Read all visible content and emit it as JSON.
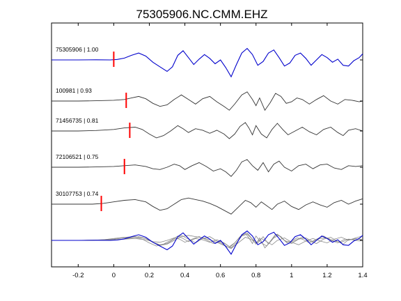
{
  "chart_data": {
    "type": "line",
    "title": "75305906.NC.CMM.EHZ",
    "xlabel": "",
    "ylabel": "",
    "xlim": [
      -0.35,
      1.4
    ],
    "x_ticks": [
      -0.2,
      0,
      0.2,
      0.4,
      0.6,
      0.8,
      1,
      1.2,
      1.4
    ],
    "x_tick_labels": [
      "-0.2",
      "0",
      "0.2",
      "0.4",
      "0.6",
      "0.8",
      "1",
      "1.2",
      "1.4"
    ],
    "grid": false,
    "series": [
      {
        "name": "75305906 | 1.00",
        "color": "#0000cc",
        "pick_time": 0.0,
        "pick_color": "#ff0000",
        "points": [
          [
            -0.35,
            0.0
          ],
          [
            -0.2,
            0.0
          ],
          [
            -0.1,
            0.01
          ],
          [
            -0.02,
            0.0
          ],
          [
            0.02,
            0.03
          ],
          [
            0.06,
            0.12
          ],
          [
            0.1,
            0.3
          ],
          [
            0.14,
            0.45
          ],
          [
            0.18,
            0.25
          ],
          [
            0.22,
            -0.15
          ],
          [
            0.26,
            -0.45
          ],
          [
            0.3,
            -0.75
          ],
          [
            0.33,
            -0.45
          ],
          [
            0.36,
            0.3
          ],
          [
            0.39,
            0.6
          ],
          [
            0.42,
            0.15
          ],
          [
            0.45,
            -0.3
          ],
          [
            0.48,
            0.05
          ],
          [
            0.51,
            0.35
          ],
          [
            0.54,
            0.1
          ],
          [
            0.57,
            -0.25
          ],
          [
            0.6,
            0.0
          ],
          [
            0.63,
            -0.5
          ],
          [
            0.66,
            -1.1
          ],
          [
            0.69,
            -0.3
          ],
          [
            0.72,
            0.45
          ],
          [
            0.75,
            0.75
          ],
          [
            0.78,
            0.35
          ],
          [
            0.81,
            -0.35
          ],
          [
            0.84,
            -0.1
          ],
          [
            0.87,
            0.45
          ],
          [
            0.9,
            0.65
          ],
          [
            0.93,
            0.15
          ],
          [
            0.96,
            -0.4
          ],
          [
            0.99,
            -0.2
          ],
          [
            1.02,
            0.3
          ],
          [
            1.05,
            0.45
          ],
          [
            1.08,
            0.1
          ],
          [
            1.11,
            -0.35
          ],
          [
            1.14,
            0.0
          ],
          [
            1.17,
            0.35
          ],
          [
            1.2,
            0.15
          ],
          [
            1.23,
            -0.15
          ],
          [
            1.26,
            0.05
          ],
          [
            1.29,
            -0.35
          ],
          [
            1.32,
            -0.4
          ],
          [
            1.35,
            -0.05
          ],
          [
            1.38,
            0.15
          ],
          [
            1.4,
            0.4
          ]
        ]
      },
      {
        "name": "100981 | 0.93",
        "color": "#333333",
        "pick_time": 0.07,
        "pick_color": "#ff0000",
        "points": [
          [
            -0.35,
            0.0
          ],
          [
            -0.2,
            0.0
          ],
          [
            -0.1,
            0.02
          ],
          [
            0.0,
            0.05
          ],
          [
            0.06,
            0.1
          ],
          [
            0.1,
            0.2
          ],
          [
            0.14,
            0.3
          ],
          [
            0.18,
            0.15
          ],
          [
            0.22,
            -0.15
          ],
          [
            0.26,
            -0.35
          ],
          [
            0.3,
            -0.25
          ],
          [
            0.34,
            0.1
          ],
          [
            0.38,
            0.4
          ],
          [
            0.42,
            0.1
          ],
          [
            0.46,
            -0.2
          ],
          [
            0.5,
            0.15
          ],
          [
            0.54,
            0.3
          ],
          [
            0.58,
            -0.05
          ],
          [
            0.62,
            -0.35
          ],
          [
            0.65,
            -0.6
          ],
          [
            0.68,
            -0.2
          ],
          [
            0.72,
            0.4
          ],
          [
            0.75,
            0.6
          ],
          [
            0.78,
            0.1
          ],
          [
            0.8,
            -0.3
          ],
          [
            0.82,
            0.2
          ],
          [
            0.85,
            -0.6
          ],
          [
            0.88,
            -0.1
          ],
          [
            0.91,
            0.5
          ],
          [
            0.94,
            0.3
          ],
          [
            0.97,
            -0.15
          ],
          [
            1.0,
            -0.05
          ],
          [
            1.03,
            0.2
          ],
          [
            1.06,
            0.1
          ],
          [
            1.1,
            -0.2
          ],
          [
            1.14,
            0.1
          ],
          [
            1.18,
            0.35
          ],
          [
            1.22,
            0.0
          ],
          [
            1.26,
            -0.2
          ],
          [
            1.3,
            0.1
          ],
          [
            1.34,
            0.05
          ],
          [
            1.38,
            -0.05
          ],
          [
            1.4,
            0.0
          ]
        ]
      },
      {
        "name": "71456735 | 0.81",
        "color": "#333333",
        "pick_time": 0.09,
        "pick_color": "#ff0000",
        "points": [
          [
            -0.35,
            0.0
          ],
          [
            -0.2,
            0.0
          ],
          [
            -0.1,
            0.03
          ],
          [
            0.0,
            0.1
          ],
          [
            0.06,
            0.2
          ],
          [
            0.12,
            0.25
          ],
          [
            0.16,
            0.1
          ],
          [
            0.2,
            -0.2
          ],
          [
            0.24,
            -0.45
          ],
          [
            0.28,
            -0.3
          ],
          [
            0.32,
            0.0
          ],
          [
            0.36,
            0.35
          ],
          [
            0.39,
            0.15
          ],
          [
            0.42,
            -0.1
          ],
          [
            0.46,
            0.15
          ],
          [
            0.5,
            0.05
          ],
          [
            0.54,
            -0.15
          ],
          [
            0.58,
            0.05
          ],
          [
            0.62,
            -0.2
          ],
          [
            0.65,
            -0.5
          ],
          [
            0.68,
            -0.2
          ],
          [
            0.71,
            0.3
          ],
          [
            0.74,
            0.55
          ],
          [
            0.76,
            0.2
          ],
          [
            0.78,
            -0.25
          ],
          [
            0.8,
            0.35
          ],
          [
            0.83,
            -0.2
          ],
          [
            0.86,
            -0.45
          ],
          [
            0.89,
            0.1
          ],
          [
            0.92,
            0.5
          ],
          [
            0.95,
            0.1
          ],
          [
            0.98,
            -0.25
          ],
          [
            1.02,
            0.0
          ],
          [
            1.06,
            0.25
          ],
          [
            1.1,
            -0.05
          ],
          [
            1.14,
            -0.25
          ],
          [
            1.18,
            0.1
          ],
          [
            1.22,
            0.25
          ],
          [
            1.26,
            -0.1
          ],
          [
            1.29,
            -0.3
          ],
          [
            1.32,
            0.05
          ],
          [
            1.36,
            0.15
          ],
          [
            1.4,
            0.0
          ]
        ]
      },
      {
        "name": "72106521 | 0.75",
        "color": "#333333",
        "pick_time": 0.06,
        "pick_color": "#ff0000",
        "points": [
          [
            -0.35,
            0.0
          ],
          [
            -0.2,
            0.0
          ],
          [
            -0.1,
            0.02
          ],
          [
            0.0,
            0.05
          ],
          [
            0.06,
            0.1
          ],
          [
            0.12,
            0.15
          ],
          [
            0.18,
            0.05
          ],
          [
            0.22,
            -0.1
          ],
          [
            0.26,
            -0.15
          ],
          [
            0.3,
            0.0
          ],
          [
            0.34,
            0.2
          ],
          [
            0.37,
            0.1
          ],
          [
            0.4,
            -0.15
          ],
          [
            0.44,
            0.1
          ],
          [
            0.48,
            0.3
          ],
          [
            0.52,
            0.05
          ],
          [
            0.56,
            -0.25
          ],
          [
            0.6,
            -0.1
          ],
          [
            0.63,
            -0.3
          ],
          [
            0.66,
            -0.6
          ],
          [
            0.69,
            -0.2
          ],
          [
            0.72,
            0.35
          ],
          [
            0.75,
            0.5
          ],
          [
            0.78,
            0.1
          ],
          [
            0.81,
            -0.2
          ],
          [
            0.84,
            0.3
          ],
          [
            0.87,
            -0.3
          ],
          [
            0.9,
            0.2
          ],
          [
            0.93,
            0.4
          ],
          [
            0.96,
            0.0
          ],
          [
            1.0,
            -0.25
          ],
          [
            1.04,
            0.1
          ],
          [
            1.08,
            0.2
          ],
          [
            1.12,
            -0.1
          ],
          [
            1.16,
            0.15
          ],
          [
            1.2,
            0.2
          ],
          [
            1.24,
            -0.05
          ],
          [
            1.28,
            -0.15
          ],
          [
            1.32,
            0.1
          ],
          [
            1.36,
            0.05
          ],
          [
            1.4,
            0.1
          ]
        ]
      },
      {
        "name": "30107753 | 0.74",
        "color": "#333333",
        "pick_time": -0.07,
        "pick_color": "#ff0000",
        "points": [
          [
            -0.35,
            0.0
          ],
          [
            -0.2,
            0.0
          ],
          [
            -0.12,
            0.0
          ],
          [
            -0.06,
            0.05
          ],
          [
            0.0,
            0.15
          ],
          [
            0.06,
            0.25
          ],
          [
            0.12,
            0.3
          ],
          [
            0.18,
            0.15
          ],
          [
            0.22,
            -0.15
          ],
          [
            0.26,
            -0.4
          ],
          [
            0.3,
            -0.3
          ],
          [
            0.34,
            0.0
          ],
          [
            0.38,
            0.3
          ],
          [
            0.42,
            0.4
          ],
          [
            0.46,
            0.3
          ],
          [
            0.5,
            0.2
          ],
          [
            0.54,
            0.05
          ],
          [
            0.58,
            -0.15
          ],
          [
            0.62,
            -0.4
          ],
          [
            0.66,
            -0.65
          ],
          [
            0.7,
            -0.2
          ],
          [
            0.74,
            0.25
          ],
          [
            0.77,
            0.1
          ],
          [
            0.8,
            -0.2
          ],
          [
            0.83,
            0.15
          ],
          [
            0.86,
            -0.1
          ],
          [
            0.89,
            -0.35
          ],
          [
            0.92,
            0.0
          ],
          [
            0.96,
            0.2
          ],
          [
            1.0,
            -0.15
          ],
          [
            1.04,
            -0.35
          ],
          [
            1.08,
            -0.05
          ],
          [
            1.12,
            0.15
          ],
          [
            1.16,
            -0.05
          ],
          [
            1.2,
            -0.2
          ],
          [
            1.24,
            0.1
          ],
          [
            1.28,
            0.25
          ],
          [
            1.32,
            0.0
          ],
          [
            1.36,
            0.2
          ],
          [
            1.4,
            0.35
          ]
        ]
      }
    ]
  }
}
